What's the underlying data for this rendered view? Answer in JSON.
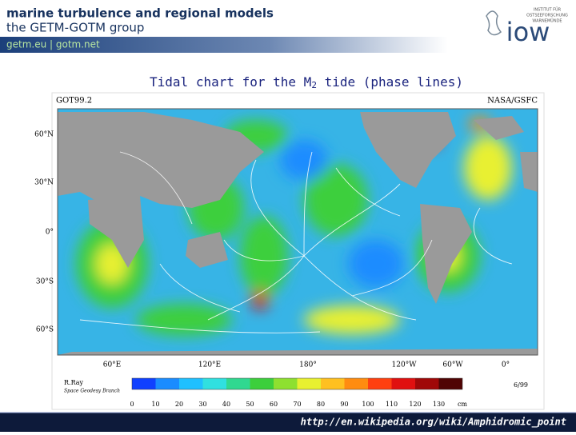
{
  "header": {
    "title_line1": "marine turbulence and regional models",
    "title_line2": "the GETM-GOTM group",
    "links": "getm.eu | gotm.net",
    "logo_text": "iow",
    "logo_small": [
      "INSTITUT FÜR",
      "OSTSEEFORSCHUNG",
      "WARNEMÜNDE"
    ]
  },
  "slide_title": {
    "before": "Tidal chart for the M",
    "subscript": "2",
    "after": " tide (phase lines)"
  },
  "map": {
    "model": "GOT99.2",
    "credit": "NASA/GSFC",
    "lat_labels": [
      "60°N",
      "30°N",
      "0°",
      "30°S",
      "60°S"
    ],
    "lon_labels": [
      "60°E",
      "120°E",
      "180°",
      "120°W",
      "60°W",
      "0°"
    ],
    "author": "R.Ray",
    "author_unit": "Space Geodesy Branch",
    "date": "6/99",
    "colorbar": {
      "ticks": [
        0,
        10,
        20,
        30,
        40,
        50,
        60,
        70,
        80,
        90,
        100,
        110,
        120,
        130
      ],
      "unit": "cm",
      "colors": [
        "#1040ff",
        "#1a8cff",
        "#1fc0ff",
        "#30e0e0",
        "#30d890",
        "#3ccf3c",
        "#8ee030",
        "#e8f030",
        "#ffc020",
        "#ff8c10",
        "#ff4010",
        "#e01010",
        "#a00808",
        "#500404"
      ]
    }
  },
  "footer": {
    "url": "http://en.wikipedia.org/wiki/Amphidromic_point"
  }
}
